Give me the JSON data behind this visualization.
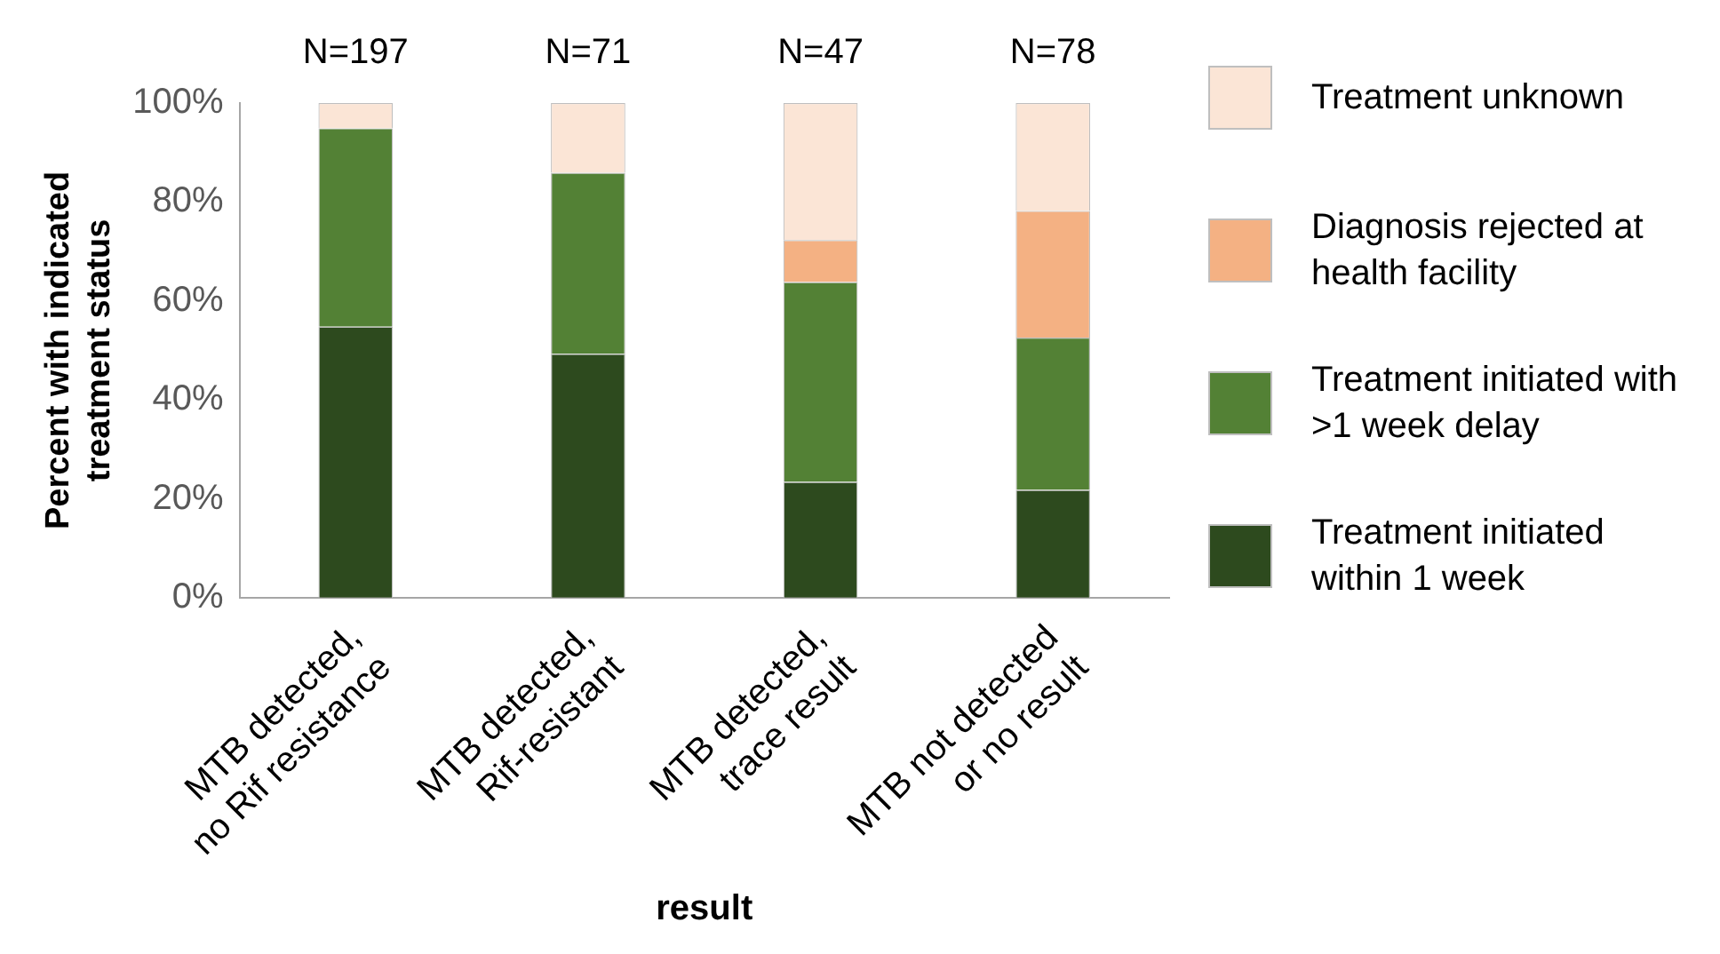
{
  "chart_data": {
    "type": "bar",
    "stacked": true,
    "ylabel": "Percent with indicated\ntreatment status",
    "xlabel": "result",
    "categories": [
      "MTB detected,\nno Rif resistance",
      "MTB detected,\nRif-resistant",
      "MTB detected,\ntrace result",
      "MTB not detected\nor no result"
    ],
    "series": [
      {
        "name": "Treatment initiated within 1 week",
        "color": "#2d4a1e",
        "values": [
          54.8,
          49.3,
          23.4,
          21.8
        ]
      },
      {
        "name": "Treatment initiated with >1 week delay",
        "color": "#538135",
        "values": [
          40.1,
          36.6,
          40.4,
          30.8
        ]
      },
      {
        "name": "Diagnosis rejected at health facility",
        "color": "#f4b183",
        "values": [
          0,
          0,
          8.5,
          25.6
        ]
      },
      {
        "name": "Treatment unknown",
        "color": "#fbe5d6",
        "values": [
          5.1,
          14.1,
          27.7,
          21.8
        ]
      }
    ],
    "annotations": [
      {
        "text": "N=197",
        "x": "MTB detected,\nno Rif resistance",
        "y": 100
      },
      {
        "text": "N=71",
        "x": "MTB detected,\nRif-resistant",
        "y": 100
      },
      {
        "text": "N=47",
        "x": "MTB detected,\ntrace result",
        "y": 100
      },
      {
        "text": "N=78",
        "x": "MTB not detected\nor no result",
        "y": 100
      }
    ],
    "ylim": [
      0,
      100
    ],
    "yticks": [
      {
        "value": 0,
        "label": "0%"
      },
      {
        "value": 20,
        "label": "20%"
      },
      {
        "value": 40,
        "label": "40%"
      },
      {
        "value": 60,
        "label": "60%"
      },
      {
        "value": 80,
        "label": "80%"
      },
      {
        "value": 100,
        "label": "100%"
      }
    ],
    "grid": false,
    "legend": "right"
  }
}
